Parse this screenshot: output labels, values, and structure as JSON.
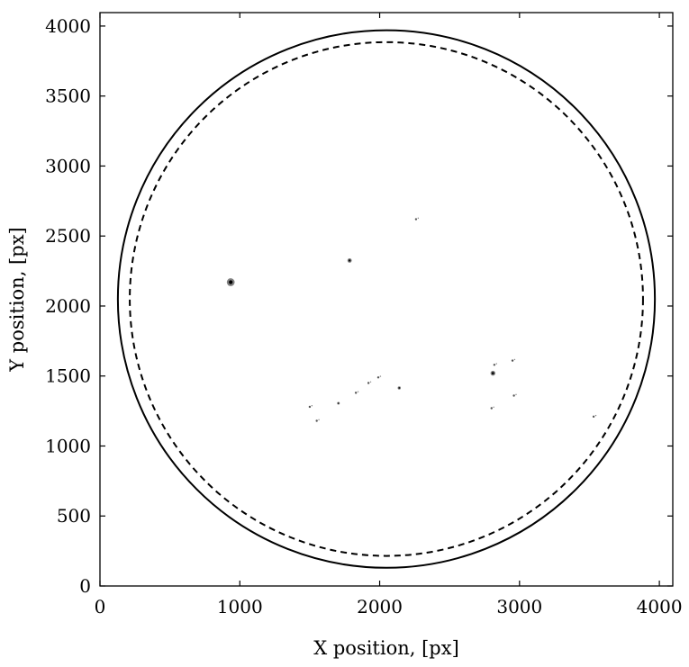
{
  "chart_data": {
    "type": "scatter",
    "title": "",
    "xlabel": "X position, [px]",
    "ylabel": "Y position, [px]",
    "xlim": [
      0,
      4096
    ],
    "ylim": [
      0,
      4096
    ],
    "xticks": [
      0,
      1000,
      2000,
      3000,
      4000
    ],
    "yticks": [
      0,
      500,
      1000,
      1500,
      2000,
      2500,
      3000,
      3500,
      4000
    ],
    "grid": false,
    "legend": "none",
    "circles": [
      {
        "name": "outer limb",
        "cx": 2048,
        "cy": 2050,
        "r": 1920,
        "style": "solid",
        "color": "#000000"
      },
      {
        "name": "inner limb",
        "cx": 2048,
        "cy": 2050,
        "r": 1835,
        "style": "dashed",
        "color": "#000000"
      }
    ],
    "features": [
      {
        "x": 935,
        "y": 2170,
        "size": 45,
        "kind": "sunspot"
      },
      {
        "x": 1785,
        "y": 2325,
        "size": 25,
        "kind": "sunspot"
      },
      {
        "x": 2260,
        "y": 2620,
        "size": 8,
        "kind": "fragment"
      },
      {
        "x": 1705,
        "y": 1305,
        "size": 12,
        "kind": "sunspot"
      },
      {
        "x": 1830,
        "y": 1380,
        "size": 10,
        "kind": "fragment"
      },
      {
        "x": 1920,
        "y": 1450,
        "size": 8,
        "kind": "fragment"
      },
      {
        "x": 1990,
        "y": 1490,
        "size": 8,
        "kind": "fragment"
      },
      {
        "x": 2140,
        "y": 1415,
        "size": 18,
        "kind": "sunspot"
      },
      {
        "x": 1500,
        "y": 1280,
        "size": 12,
        "kind": "fragment"
      },
      {
        "x": 1550,
        "y": 1180,
        "size": 8,
        "kind": "fragment"
      },
      {
        "x": 2810,
        "y": 1520,
        "size": 28,
        "kind": "sunspot"
      },
      {
        "x": 2820,
        "y": 1580,
        "size": 12,
        "kind": "fragment"
      },
      {
        "x": 2950,
        "y": 1610,
        "size": 8,
        "kind": "fragment"
      },
      {
        "x": 2960,
        "y": 1360,
        "size": 10,
        "kind": "fragment"
      },
      {
        "x": 2800,
        "y": 1270,
        "size": 8,
        "kind": "fragment"
      },
      {
        "x": 3530,
        "y": 1210,
        "size": 8,
        "kind": "fragment"
      }
    ]
  }
}
